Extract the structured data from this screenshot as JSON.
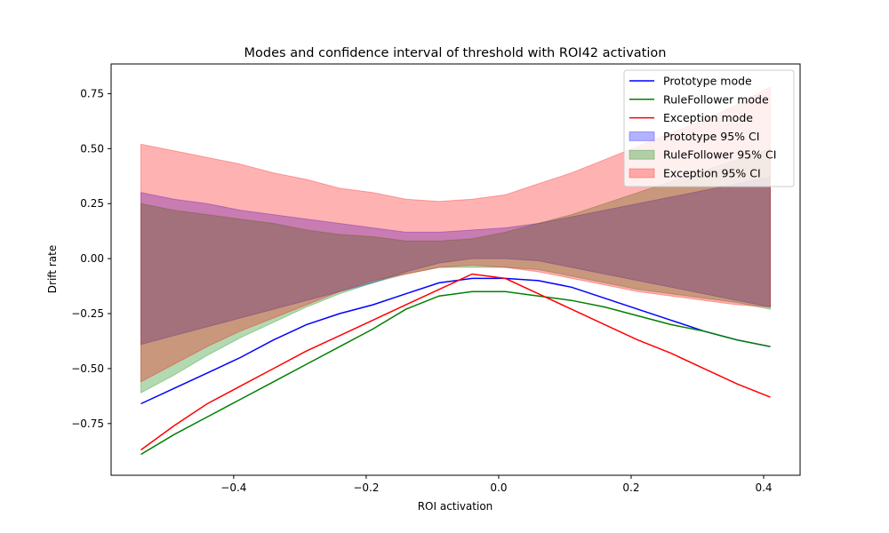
{
  "chart_data": {
    "type": "line",
    "title": "Modes and confidence interval of threshold with ROI42 activation",
    "xlabel": "ROI activation",
    "ylabel": "Drift rate",
    "xlim": [
      -0.585,
      0.455
    ],
    "ylim": [
      -0.985,
      0.885
    ],
    "xticks": [
      -0.4,
      -0.2,
      0.0,
      0.2,
      0.4
    ],
    "xtick_labels": [
      "−0.4",
      "−0.2",
      "0.0",
      "0.2",
      "0.4"
    ],
    "yticks": [
      -0.75,
      -0.5,
      -0.25,
      0.0,
      0.25,
      0.5,
      0.75
    ],
    "ytick_labels": [
      "−0.75",
      "−0.50",
      "−0.25",
      "0.00",
      "0.25",
      "0.50",
      "0.75"
    ],
    "grid": false,
    "legend_position": "top-right",
    "x": [
      -0.54,
      -0.49,
      -0.44,
      -0.39,
      -0.34,
      -0.29,
      -0.24,
      -0.19,
      -0.14,
      -0.09,
      -0.04,
      0.01,
      0.06,
      0.11,
      0.16,
      0.21,
      0.26,
      0.31,
      0.36,
      0.41
    ],
    "series": [
      {
        "name": "Prototype mode",
        "color": "#0000ff",
        "values": [
          -0.66,
          -0.59,
          -0.52,
          -0.45,
          -0.37,
          -0.3,
          -0.25,
          -0.21,
          -0.16,
          -0.11,
          -0.09,
          -0.09,
          -0.1,
          -0.13,
          -0.18,
          -0.23,
          -0.28,
          -0.33,
          -0.37,
          -0.4
        ]
      },
      {
        "name": "RuleFollower mode",
        "color": "#008000",
        "values": [
          -0.89,
          -0.8,
          -0.72,
          -0.64,
          -0.56,
          -0.48,
          -0.4,
          -0.32,
          -0.23,
          -0.17,
          -0.15,
          -0.15,
          -0.17,
          -0.19,
          -0.22,
          -0.26,
          -0.3,
          -0.33,
          -0.37,
          -0.4
        ]
      },
      {
        "name": "Exception mode",
        "color": "#ff0000",
        "values": [
          -0.87,
          -0.76,
          -0.66,
          -0.58,
          -0.5,
          -0.42,
          -0.35,
          -0.28,
          -0.21,
          -0.14,
          -0.07,
          -0.09,
          -0.16,
          -0.23,
          -0.3,
          -0.37,
          -0.43,
          -0.5,
          -0.57,
          -0.63
        ]
      }
    ],
    "bands": [
      {
        "name": "Prototype 95% CI",
        "color": "#0000ff",
        "lower": [
          -0.39,
          -0.35,
          -0.31,
          -0.27,
          -0.23,
          -0.19,
          -0.15,
          -0.11,
          -0.06,
          -0.02,
          0.0,
          0.0,
          -0.01,
          -0.04,
          -0.07,
          -0.1,
          -0.13,
          -0.16,
          -0.19,
          -0.22
        ],
        "upper": [
          0.3,
          0.27,
          0.25,
          0.22,
          0.2,
          0.18,
          0.16,
          0.14,
          0.12,
          0.12,
          0.13,
          0.14,
          0.16,
          0.19,
          0.22,
          0.25,
          0.28,
          0.31,
          0.34,
          0.37
        ]
      },
      {
        "name": "RuleFollower 95% CI",
        "color": "#008000",
        "lower": [
          -0.61,
          -0.53,
          -0.44,
          -0.36,
          -0.29,
          -0.22,
          -0.16,
          -0.11,
          -0.07,
          -0.04,
          -0.04,
          -0.04,
          -0.05,
          -0.08,
          -0.11,
          -0.14,
          -0.16,
          -0.18,
          -0.2,
          -0.23
        ],
        "upper": [
          0.25,
          0.22,
          0.2,
          0.18,
          0.16,
          0.13,
          0.11,
          0.1,
          0.08,
          0.08,
          0.09,
          0.12,
          0.16,
          0.2,
          0.25,
          0.3,
          0.35,
          0.4,
          0.45,
          0.5
        ]
      },
      {
        "name": "Exception 95% CI",
        "color": "#ff0000",
        "lower": [
          -0.56,
          -0.48,
          -0.4,
          -0.33,
          -0.27,
          -0.21,
          -0.15,
          -0.1,
          -0.07,
          -0.04,
          -0.03,
          -0.04,
          -0.06,
          -0.09,
          -0.12,
          -0.15,
          -0.17,
          -0.19,
          -0.21,
          -0.22
        ],
        "upper": [
          0.52,
          0.49,
          0.46,
          0.43,
          0.39,
          0.36,
          0.32,
          0.3,
          0.27,
          0.26,
          0.27,
          0.29,
          0.34,
          0.39,
          0.45,
          0.51,
          0.57,
          0.63,
          0.7,
          0.78
        ]
      }
    ]
  }
}
